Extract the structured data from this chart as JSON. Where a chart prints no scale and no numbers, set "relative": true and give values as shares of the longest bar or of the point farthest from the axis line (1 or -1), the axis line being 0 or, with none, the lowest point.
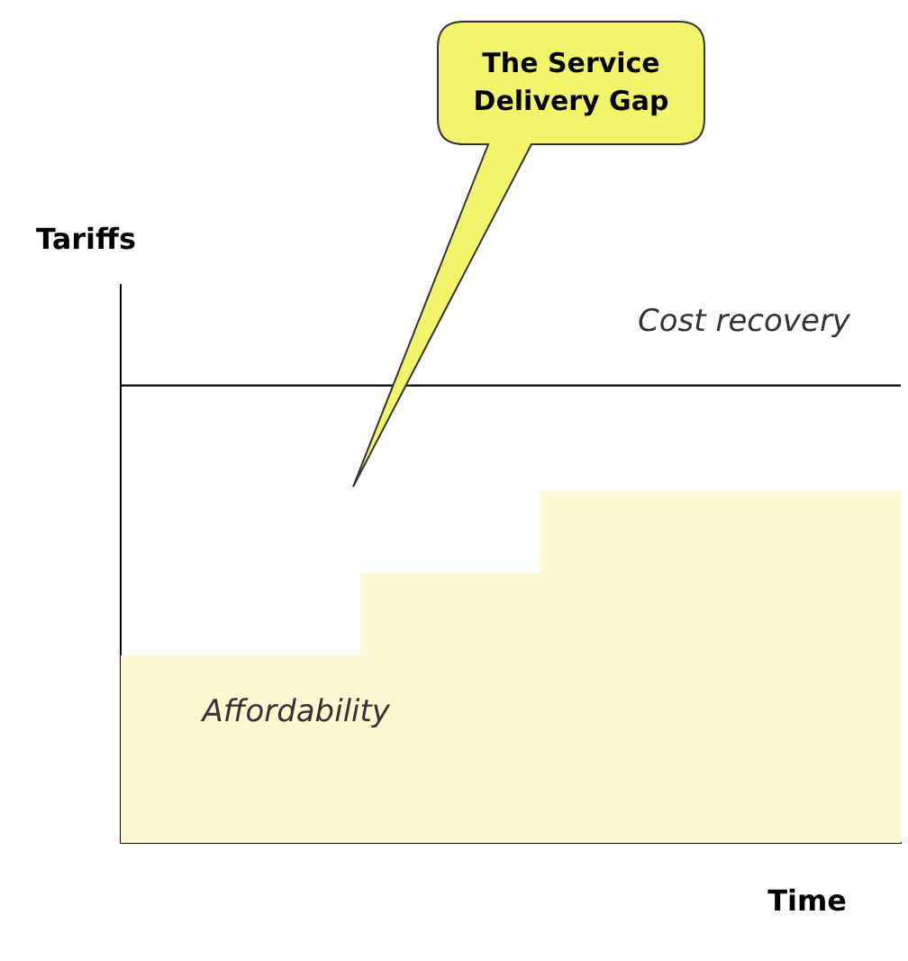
{
  "chart_data": {
    "type": "step",
    "relative": true,
    "ylabel": "Tariffs",
    "xlabel": "Time",
    "categories": [
      null,
      null,
      null,
      null,
      null,
      null,
      null,
      null,
      null,
      null,
      null,
      null,
      null,
      null
    ],
    "series": [
      {
        "name": "Affordability",
        "type": "area",
        "color": "#fbf8d2",
        "values": [
          0.41,
          0.41,
          0.41,
          0.41,
          0.41,
          0.59,
          0.59,
          0.59,
          0.77,
          0.77,
          0.77,
          0.77,
          0.77,
          0.77
        ]
      },
      {
        "name": "Cost recovery",
        "type": "line",
        "color": "#000000",
        "values": [
          1,
          1,
          1,
          1,
          1,
          1,
          1,
          1,
          1,
          1,
          1,
          1,
          1,
          1
        ]
      }
    ],
    "annotations": [
      "The Service Delivery Gap"
    ],
    "grid": false,
    "legend": false
  }
}
